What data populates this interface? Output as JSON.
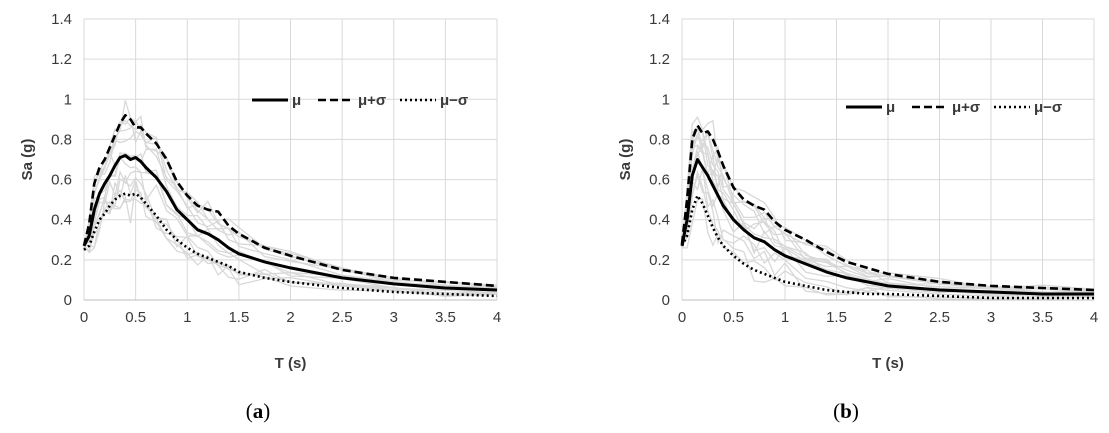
{
  "chart_data": [
    {
      "type": "line",
      "panel_label": "a",
      "xlabel": "T (s)",
      "ylabel": "Sa (g)",
      "xlim": [
        0,
        4
      ],
      "ylim": [
        0,
        1.4
      ],
      "xticks": [
        "0",
        "0.5",
        "1",
        "1.5",
        "2",
        "2.5",
        "3",
        "3.5",
        "4"
      ],
      "yticks": [
        "0",
        "0.2",
        "0.4",
        "0.6",
        "0.8",
        "1",
        "1.2",
        "1.4"
      ],
      "grid": true,
      "legend": "top-right",
      "series": [
        {
          "name": "μ",
          "style": "solid",
          "x": [
            0,
            0.05,
            0.1,
            0.15,
            0.2,
            0.25,
            0.3,
            0.35,
            0.4,
            0.45,
            0.5,
            0.55,
            0.6,
            0.7,
            0.8,
            0.9,
            1.0,
            1.1,
            1.2,
            1.3,
            1.4,
            1.5,
            1.75,
            2.0,
            2.5,
            3.0,
            3.5,
            4.0
          ],
          "y": [
            0.27,
            0.32,
            0.45,
            0.53,
            0.58,
            0.62,
            0.67,
            0.71,
            0.72,
            0.7,
            0.71,
            0.69,
            0.66,
            0.61,
            0.54,
            0.45,
            0.4,
            0.35,
            0.33,
            0.3,
            0.26,
            0.23,
            0.19,
            0.16,
            0.11,
            0.08,
            0.06,
            0.05
          ]
        },
        {
          "name": "μ+σ",
          "style": "dashed",
          "x": [
            0,
            0.05,
            0.1,
            0.15,
            0.2,
            0.25,
            0.3,
            0.35,
            0.4,
            0.45,
            0.5,
            0.55,
            0.6,
            0.7,
            0.8,
            0.9,
            1.0,
            1.1,
            1.2,
            1.3,
            1.4,
            1.5,
            1.75,
            2.0,
            2.5,
            3.0,
            3.5,
            4.0
          ],
          "y": [
            0.27,
            0.38,
            0.58,
            0.66,
            0.7,
            0.76,
            0.82,
            0.88,
            0.92,
            0.9,
            0.86,
            0.86,
            0.83,
            0.78,
            0.7,
            0.59,
            0.52,
            0.47,
            0.45,
            0.44,
            0.37,
            0.33,
            0.26,
            0.22,
            0.15,
            0.11,
            0.09,
            0.07
          ]
        },
        {
          "name": "μ−σ",
          "style": "dotted",
          "x": [
            0,
            0.05,
            0.1,
            0.15,
            0.2,
            0.25,
            0.3,
            0.35,
            0.4,
            0.45,
            0.5,
            0.55,
            0.6,
            0.7,
            0.8,
            0.9,
            1.0,
            1.1,
            1.2,
            1.3,
            1.4,
            1.5,
            1.75,
            2.0,
            2.5,
            3.0,
            3.5,
            4.0
          ],
          "y": [
            0.25,
            0.27,
            0.34,
            0.4,
            0.43,
            0.47,
            0.5,
            0.52,
            0.53,
            0.52,
            0.53,
            0.51,
            0.48,
            0.42,
            0.35,
            0.3,
            0.26,
            0.23,
            0.21,
            0.19,
            0.17,
            0.14,
            0.11,
            0.09,
            0.06,
            0.04,
            0.03,
            0.02
          ]
        }
      ]
    },
    {
      "type": "line",
      "panel_label": "b",
      "xlabel": "T (s)",
      "ylabel": "Sa (g)",
      "xlim": [
        0,
        4
      ],
      "ylim": [
        0,
        1.4
      ],
      "xticks": [
        "0",
        "0.5",
        "1",
        "1.5",
        "2",
        "2.5",
        "3",
        "3.5",
        "4"
      ],
      "yticks": [
        "0",
        "0.2",
        "0.4",
        "0.6",
        "0.8",
        "1",
        "1.2",
        "1.4"
      ],
      "grid": true,
      "legend": "top-right",
      "series": [
        {
          "name": "μ",
          "style": "solid",
          "x": [
            0,
            0.05,
            0.1,
            0.15,
            0.2,
            0.25,
            0.3,
            0.35,
            0.4,
            0.5,
            0.6,
            0.7,
            0.8,
            0.9,
            1.0,
            1.2,
            1.4,
            1.6,
            1.8,
            2.0,
            2.5,
            3.0,
            3.5,
            4.0
          ],
          "y": [
            0.27,
            0.4,
            0.62,
            0.7,
            0.66,
            0.62,
            0.57,
            0.52,
            0.47,
            0.4,
            0.35,
            0.31,
            0.29,
            0.25,
            0.22,
            0.18,
            0.14,
            0.11,
            0.09,
            0.07,
            0.05,
            0.04,
            0.03,
            0.03
          ]
        },
        {
          "name": "μ+σ",
          "style": "dashed",
          "x": [
            0,
            0.05,
            0.1,
            0.15,
            0.2,
            0.25,
            0.3,
            0.35,
            0.4,
            0.5,
            0.6,
            0.7,
            0.8,
            0.9,
            1.0,
            1.2,
            1.4,
            1.6,
            1.8,
            2.0,
            2.5,
            3.0,
            3.5,
            4.0
          ],
          "y": [
            0.28,
            0.5,
            0.8,
            0.87,
            0.83,
            0.84,
            0.8,
            0.74,
            0.67,
            0.56,
            0.5,
            0.47,
            0.45,
            0.39,
            0.35,
            0.3,
            0.24,
            0.19,
            0.16,
            0.13,
            0.09,
            0.07,
            0.06,
            0.05
          ]
        },
        {
          "name": "μ−σ",
          "style": "dotted",
          "x": [
            0,
            0.05,
            0.1,
            0.15,
            0.2,
            0.25,
            0.3,
            0.35,
            0.4,
            0.5,
            0.6,
            0.7,
            0.8,
            0.9,
            1.0,
            1.2,
            1.4,
            1.6,
            1.8,
            2.0,
            2.5,
            3.0,
            3.5,
            4.0
          ],
          "y": [
            0.27,
            0.32,
            0.45,
            0.52,
            0.48,
            0.42,
            0.36,
            0.31,
            0.27,
            0.22,
            0.18,
            0.15,
            0.13,
            0.11,
            0.09,
            0.07,
            0.05,
            0.04,
            0.03,
            0.03,
            0.02,
            0.01,
            0.01,
            0.01
          ]
        }
      ]
    }
  ]
}
